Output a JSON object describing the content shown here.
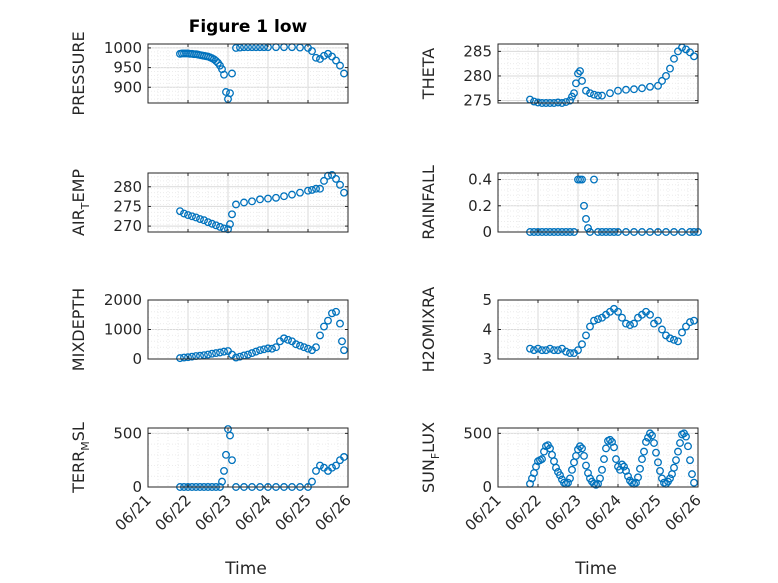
{
  "figure_title": "Figure 1 low",
  "marker_color": "#0072BD",
  "chart_data": [
    {
      "type": "scatter",
      "title": "Figure 1 low",
      "ylabel": "PRESSURE",
      "xlim": [
        "06/21",
        "06/26"
      ],
      "ylim": [
        860,
        1010
      ],
      "yticks": [
        900,
        950,
        1000
      ],
      "xtick_labels": [],
      "grid": true,
      "x": [
        "06/21.80",
        "06/21.85",
        "06/21.90",
        "06/21.95",
        "06/22.00",
        "06/22.05",
        "06/22.10",
        "06/22.15",
        "06/22.20",
        "06/22.25",
        "06/22.30",
        "06/22.35",
        "06/22.40",
        "06/22.45",
        "06/22.50",
        "06/22.55",
        "06/22.60",
        "06/22.65",
        "06/22.70",
        "06/22.75",
        "06/22.80",
        "06/22.85",
        "06/22.90",
        "06/22.95",
        "06/23.00",
        "06/23.05",
        "06/23.10",
        "06/23.20",
        "06/23.30",
        "06/23.40",
        "06/23.50",
        "06/23.60",
        "06/23.70",
        "06/23.80",
        "06/23.90",
        "06/24.00",
        "06/24.20",
        "06/24.40",
        "06/24.60",
        "06/24.80",
        "06/25.00",
        "06/25.10",
        "06/25.20",
        "06/25.30",
        "06/25.40",
        "06/25.50",
        "06/25.60",
        "06/25.70",
        "06/25.80",
        "06/25.90"
      ],
      "y": [
        985,
        986,
        986,
        986,
        986,
        985,
        985,
        984,
        984,
        983,
        982,
        981,
        980,
        979,
        978,
        976,
        974,
        971,
        967,
        962,
        955,
        946,
        932,
        888,
        870,
        885,
        935,
        1000,
        1001,
        1002,
        1002,
        1002,
        1002,
        1002,
        1002,
        1002,
        1002,
        1002,
        1002,
        1001,
        1000,
        992,
        975,
        972,
        980,
        985,
        978,
        968,
        955,
        935
      ]
    },
    {
      "type": "scatter",
      "ylabel": "THETA",
      "xlim": [
        "06/21",
        "06/26"
      ],
      "ylim": [
        274.5,
        286.5
      ],
      "yticks": [
        275,
        280,
        285
      ],
      "xtick_labels": [],
      "grid": true,
      "x": [
        "06/21.80",
        "06/21.90",
        "06/22.00",
        "06/22.10",
        "06/22.20",
        "06/22.30",
        "06/22.40",
        "06/22.50",
        "06/22.60",
        "06/22.70",
        "06/22.80",
        "06/22.85",
        "06/22.90",
        "06/22.95",
        "06/23.00",
        "06/23.05",
        "06/23.10",
        "06/23.20",
        "06/23.30",
        "06/23.40",
        "06/23.50",
        "06/23.60",
        "06/23.80",
        "06/24.00",
        "06/24.20",
        "06/24.40",
        "06/24.60",
        "06/24.80",
        "06/25.00",
        "06/25.10",
        "06/25.20",
        "06/25.30",
        "06/25.40",
        "06/25.50",
        "06/25.60",
        "06/25.70",
        "06/25.80",
        "06/25.90"
      ],
      "y": [
        275.2,
        274.8,
        274.6,
        274.5,
        274.5,
        274.5,
        274.5,
        274.6,
        274.5,
        274.7,
        275.0,
        275.8,
        276.5,
        278.5,
        280.5,
        281.0,
        279.0,
        277.0,
        276.5,
        276.2,
        276.0,
        276.0,
        276.5,
        277.0,
        277.2,
        277.3,
        277.5,
        277.8,
        278.0,
        279.0,
        280.0,
        281.5,
        283.5,
        285.0,
        285.8,
        285.4,
        284.8,
        284.0
      ]
    },
    {
      "type": "scatter",
      "ylabel": "AIR_TEMP",
      "xlim": [
        "06/21",
        "06/26"
      ],
      "ylim": [
        268.5,
        283.5
      ],
      "yticks": [
        270,
        275,
        280
      ],
      "xtick_labels": [],
      "grid": true,
      "x": [
        "06/21.80",
        "06/21.90",
        "06/22.00",
        "06/22.10",
        "06/22.20",
        "06/22.30",
        "06/22.40",
        "06/22.50",
        "06/22.60",
        "06/22.70",
        "06/22.80",
        "06/22.90",
        "06/23.00",
        "06/23.05",
        "06/23.10",
        "06/23.20",
        "06/23.40",
        "06/23.60",
        "06/23.80",
        "06/24.00",
        "06/24.20",
        "06/24.40",
        "06/24.60",
        "06/24.80",
        "06/25.00",
        "06/25.10",
        "06/25.20",
        "06/25.30",
        "06/25.40",
        "06/25.50",
        "06/25.60",
        "06/25.70",
        "06/25.80",
        "06/25.90"
      ],
      "y": [
        273.8,
        273.2,
        272.8,
        272.5,
        272.2,
        271.8,
        271.5,
        271.0,
        270.6,
        270.2,
        269.8,
        269.4,
        269.2,
        270.5,
        273.0,
        275.5,
        276.0,
        276.3,
        276.8,
        277.0,
        277.2,
        277.6,
        278.0,
        278.5,
        279.0,
        279.2,
        279.5,
        279.5,
        281.5,
        282.8,
        283.0,
        282.0,
        280.5,
        278.5
      ]
    },
    {
      "type": "scatter",
      "ylabel": "RAINFALL",
      "xlim": [
        "06/21",
        "06/26"
      ],
      "ylim": [
        0,
        0.45
      ],
      "yticks": [
        0,
        0.2,
        0.4
      ],
      "xtick_labels": [],
      "grid": true,
      "x": [
        "06/21.80",
        "06/21.90",
        "06/22.00",
        "06/22.10",
        "06/22.20",
        "06/22.30",
        "06/22.40",
        "06/22.50",
        "06/22.60",
        "06/22.70",
        "06/22.80",
        "06/22.90",
        "06/23.00",
        "06/23.05",
        "06/23.10",
        "06/23.15",
        "06/23.20",
        "06/23.25",
        "06/23.30",
        "06/23.40",
        "06/23.50",
        "06/23.60",
        "06/23.70",
        "06/23.80",
        "06/23.90",
        "06/24.00",
        "06/24.20",
        "06/24.40",
        "06/24.60",
        "06/24.80",
        "06/25.00",
        "06/25.20",
        "06/25.40",
        "06/25.60",
        "06/25.80",
        "06/25.90",
        "06/26.00"
      ],
      "y": [
        0,
        0,
        0,
        0,
        0,
        0,
        0,
        0,
        0,
        0,
        0,
        0,
        0.4,
        0.4,
        0.4,
        0.2,
        0.1,
        0.03,
        0,
        0.4,
        0,
        0,
        0,
        0,
        0,
        0,
        0,
        0,
        0,
        0,
        0,
        0,
        0,
        0,
        0,
        0,
        0
      ]
    },
    {
      "type": "scatter",
      "ylabel": "MIXDEPTH",
      "xlim": [
        "06/21",
        "06/26"
      ],
      "ylim": [
        0,
        2000
      ],
      "yticks": [
        0,
        1000,
        2000
      ],
      "xtick_labels": [],
      "grid": true,
      "x": [
        "06/21.80",
        "06/21.90",
        "06/22.00",
        "06/22.10",
        "06/22.20",
        "06/22.30",
        "06/22.40",
        "06/22.50",
        "06/22.60",
        "06/22.70",
        "06/22.80",
        "06/22.90",
        "06/23.00",
        "06/23.10",
        "06/23.20",
        "06/23.30",
        "06/23.40",
        "06/23.50",
        "06/23.60",
        "06/23.70",
        "06/23.80",
        "06/23.90",
        "06/24.00",
        "06/24.10",
        "06/24.20",
        "06/24.30",
        "06/24.40",
        "06/24.50",
        "06/24.60",
        "06/24.70",
        "06/24.80",
        "06/24.90",
        "06/25.00",
        "06/25.10",
        "06/25.20",
        "06/25.30",
        "06/25.40",
        "06/25.50",
        "06/25.60",
        "06/25.70",
        "06/25.80",
        "06/25.85",
        "06/25.90"
      ],
      "y": [
        30,
        50,
        60,
        80,
        100,
        110,
        130,
        150,
        180,
        200,
        220,
        250,
        270,
        150,
        50,
        80,
        120,
        150,
        200,
        250,
        300,
        330,
        360,
        350,
        400,
        600,
        700,
        650,
        600,
        500,
        450,
        400,
        350,
        300,
        400,
        800,
        1100,
        1300,
        1550,
        1600,
        1200,
        600,
        300
      ]
    },
    {
      "type": "scatter",
      "ylabel": "H2OMIXRA",
      "xlim": [
        "06/21",
        "06/26"
      ],
      "ylim": [
        3,
        5
      ],
      "yticks": [
        3,
        4,
        5
      ],
      "xtick_labels": [],
      "grid": true,
      "x": [
        "06/21.80",
        "06/21.90",
        "06/22.00",
        "06/22.10",
        "06/22.20",
        "06/22.30",
        "06/22.40",
        "06/22.50",
        "06/22.60",
        "06/22.70",
        "06/22.80",
        "06/22.90",
        "06/23.00",
        "06/23.10",
        "06/23.20",
        "06/23.30",
        "06/23.40",
        "06/23.50",
        "06/23.60",
        "06/23.70",
        "06/23.80",
        "06/23.90",
        "06/24.00",
        "06/24.10",
        "06/24.20",
        "06/24.30",
        "06/24.40",
        "06/24.50",
        "06/24.60",
        "06/24.70",
        "06/24.80",
        "06/24.90",
        "06/25.00",
        "06/25.10",
        "06/25.20",
        "06/25.30",
        "06/25.40",
        "06/25.50",
        "06/25.60",
        "06/25.70",
        "06/25.80",
        "06/25.90"
      ],
      "y": [
        3.35,
        3.3,
        3.35,
        3.3,
        3.3,
        3.35,
        3.3,
        3.3,
        3.35,
        3.25,
        3.2,
        3.2,
        3.3,
        3.5,
        3.8,
        4.1,
        4.3,
        4.35,
        4.4,
        4.5,
        4.6,
        4.7,
        4.6,
        4.4,
        4.2,
        4.15,
        4.2,
        4.4,
        4.5,
        4.6,
        4.5,
        4.2,
        4.3,
        4.0,
        3.8,
        3.7,
        3.65,
        3.6,
        3.9,
        4.1,
        4.25,
        4.3
      ]
    },
    {
      "type": "scatter",
      "ylabel": "TERR_MSL",
      "xlim": [
        "06/21",
        "06/26"
      ],
      "ylim": [
        0,
        550
      ],
      "yticks": [
        0,
        500
      ],
      "xtick_labels": [
        "06/21",
        "06/22",
        "06/23",
        "06/24",
        "06/25",
        "06/26"
      ],
      "xlabel": "Time",
      "grid": true,
      "x": [
        "06/21.80",
        "06/21.90",
        "06/22.00",
        "06/22.10",
        "06/22.20",
        "06/22.30",
        "06/22.40",
        "06/22.50",
        "06/22.60",
        "06/22.70",
        "06/22.80",
        "06/22.85",
        "06/22.90",
        "06/22.95",
        "06/23.00",
        "06/23.05",
        "06/23.10",
        "06/23.20",
        "06/23.40",
        "06/23.60",
        "06/23.80",
        "06/24.00",
        "06/24.20",
        "06/24.40",
        "06/24.60",
        "06/24.80",
        "06/25.00",
        "06/25.10",
        "06/25.20",
        "06/25.30",
        "06/25.40",
        "06/25.50",
        "06/25.60",
        "06/25.70",
        "06/25.80",
        "06/25.90"
      ],
      "y": [
        0,
        0,
        0,
        0,
        0,
        0,
        0,
        0,
        0,
        0,
        0,
        50,
        150,
        300,
        540,
        480,
        250,
        0,
        0,
        0,
        0,
        0,
        0,
        0,
        0,
        0,
        0,
        50,
        150,
        200,
        180,
        150,
        180,
        200,
        250,
        280
      ]
    },
    {
      "type": "scatter",
      "ylabel": "SUN_FLUX",
      "xlim": [
        "06/21",
        "06/26"
      ],
      "ylim": [
        0,
        550
      ],
      "yticks": [
        0,
        500
      ],
      "xtick_labels": [
        "06/21",
        "06/22",
        "06/23",
        "06/24",
        "06/25",
        "06/26"
      ],
      "xlabel": "Time",
      "grid": true,
      "x": [
        "06/21.80",
        "06/21.85",
        "06/21.90",
        "06/21.95",
        "06/22.00",
        "06/22.05",
        "06/22.10",
        "06/22.15",
        "06/22.20",
        "06/22.25",
        "06/22.30",
        "06/22.35",
        "06/22.40",
        "06/22.45",
        "06/22.50",
        "06/22.55",
        "06/22.60",
        "06/22.65",
        "06/22.70",
        "06/22.75",
        "06/22.80",
        "06/22.85",
        "06/22.90",
        "06/22.95",
        "06/23.00",
        "06/23.05",
        "06/23.10",
        "06/23.15",
        "06/23.20",
        "06/23.25",
        "06/23.30",
        "06/23.35",
        "06/23.40",
        "06/23.45",
        "06/23.50",
        "06/23.55",
        "06/23.60",
        "06/23.65",
        "06/23.70",
        "06/23.75",
        "06/23.80",
        "06/23.85",
        "06/23.90",
        "06/23.95",
        "06/24.00",
        "06/24.05",
        "06/24.10",
        "06/24.15",
        "06/24.20",
        "06/24.25",
        "06/24.30",
        "06/24.35",
        "06/24.40",
        "06/24.45",
        "06/24.50",
        "06/24.55",
        "06/24.60",
        "06/24.65",
        "06/24.70",
        "06/24.75",
        "06/24.80",
        "06/24.85",
        "06/24.90",
        "06/24.95",
        "06/25.00",
        "06/25.05",
        "06/25.10",
        "06/25.15",
        "06/25.20",
        "06/25.25",
        "06/25.30",
        "06/25.35",
        "06/25.40",
        "06/25.45",
        "06/25.50",
        "06/25.55",
        "06/25.60",
        "06/25.65",
        "06/25.70",
        "06/25.75",
        "06/25.80",
        "06/25.85",
        "06/25.90"
      ],
      "y": [
        30,
        80,
        130,
        190,
        240,
        250,
        260,
        330,
        380,
        390,
        360,
        300,
        240,
        180,
        140,
        110,
        70,
        40,
        30,
        40,
        80,
        160,
        230,
        290,
        350,
        380,
        360,
        290,
        200,
        130,
        80,
        50,
        30,
        20,
        30,
        80,
        160,
        260,
        360,
        430,
        440,
        420,
        370,
        260,
        190,
        160,
        210,
        190,
        150,
        100,
        60,
        40,
        30,
        40,
        90,
        170,
        260,
        330,
        420,
        460,
        500,
        480,
        410,
        320,
        230,
        150,
        80,
        40,
        30,
        50,
        80,
        120,
        180,
        250,
        330,
        410,
        490,
        500,
        470,
        380,
        250,
        120,
        40
      ]
    }
  ]
}
